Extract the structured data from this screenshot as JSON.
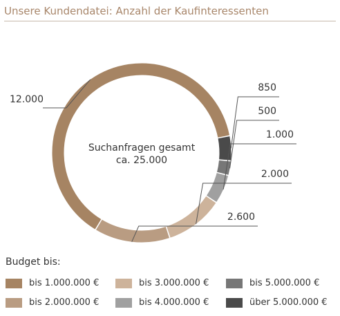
{
  "title": "Unsere Kundendatei: Anzahl der Kaufinteressenten",
  "chart_data": {
    "type": "pie",
    "title": "Unsere Kundendatei: Anzahl der Kaufinteressenten",
    "center_label": [
      "Suchanfragen gesamt",
      "ca. 25.000"
    ],
    "slices": [
      {
        "label": "bis 1.000.000 €",
        "value": 12000,
        "value_label": "12.000",
        "color": "#a68463"
      },
      {
        "label": "über 5.000.000 €",
        "value": 850,
        "value_label": "850",
        "color": "#4a4a4a"
      },
      {
        "label": "bis 5.000.000 €",
        "value": 500,
        "value_label": "500",
        "color": "#777777"
      },
      {
        "label": "bis 4.000.000 €",
        "value": 1000,
        "value_label": "1.000",
        "color": "#a0a0a0"
      },
      {
        "label": "bis 3.000.000 €",
        "value": 2000,
        "value_label": "2.000",
        "color": "#cdb39b"
      },
      {
        "label": "bis 2.000.000 €",
        "value": 2600,
        "value_label": "2.600",
        "color": "#b99c82"
      }
    ]
  },
  "legend": {
    "title": "Budget bis:",
    "items": [
      {
        "label": "bis 1.000.000 €",
        "color": "#a68463"
      },
      {
        "label": "bis 3.000.000 €",
        "color": "#cdb39b"
      },
      {
        "label": "bis 5.000.000 €",
        "color": "#777777"
      },
      {
        "label": "bis 2.000.000 €",
        "color": "#b99c82"
      },
      {
        "label": "bis 4.000.000 €",
        "color": "#a0a0a0"
      },
      {
        "label": "über 5.000.000 €",
        "color": "#4a4a4a"
      }
    ]
  }
}
